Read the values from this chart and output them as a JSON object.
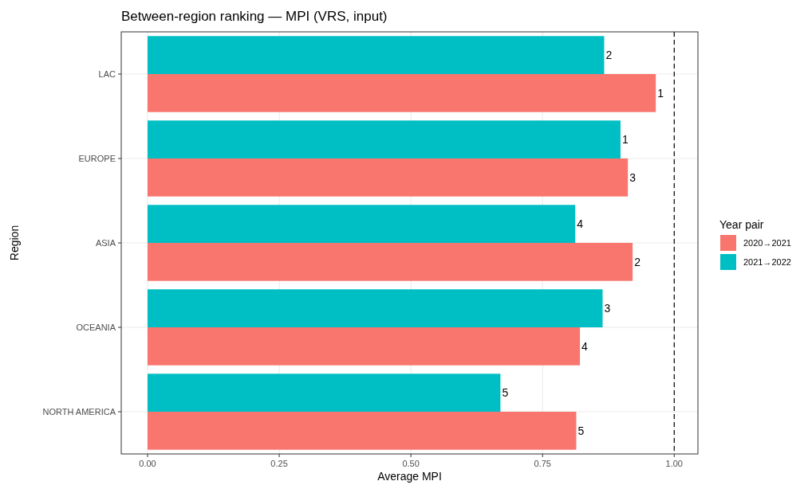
{
  "chart_data": {
    "type": "bar",
    "orientation": "horizontal",
    "title": "Between-region ranking — MPI (VRS, input)",
    "xlabel": "Average MPI",
    "ylabel": "Region",
    "legend_title": "Year pair",
    "legend": "right",
    "grid": true,
    "categories": [
      "LAC",
      "EUROPE",
      "ASIA",
      "OCEANIA",
      "NORTH AMERICA"
    ],
    "series": [
      {
        "name": "2020→2021",
        "color": "#f8766d",
        "values": [
          0.965,
          0.912,
          0.921,
          0.821,
          0.814
        ]
      },
      {
        "name": "2021→2022",
        "color": "#00bfc4",
        "values": [
          0.867,
          0.898,
          0.812,
          0.864,
          0.67
        ]
      }
    ],
    "annotations": [
      {
        "text": "1",
        "x": 0.965,
        "y": "LAC"
      },
      {
        "text": "3",
        "x": 0.912,
        "y": "EUROPE"
      },
      {
        "text": "2",
        "x": 0.921,
        "y": "ASIA"
      },
      {
        "text": "4",
        "x": 0.821,
        "y": "OCEANIA"
      },
      {
        "text": "5",
        "x": 0.814,
        "y": "NORTH AMERICA"
      },
      {
        "text": "2",
        "x": 0.867,
        "y": "LAC"
      },
      {
        "text": "1",
        "x": 0.898,
        "y": "EUROPE"
      },
      {
        "text": "4",
        "x": 0.812,
        "y": "ASIA"
      },
      {
        "text": "3",
        "x": 0.864,
        "y": "OCEANIA"
      },
      {
        "text": "5",
        "x": 0.67,
        "y": "NORTH AMERICA"
      }
    ],
    "xlim": [
      -0.05,
      1.045
    ],
    "xticks": [
      {
        "value": 0,
        "label": "0.00"
      },
      {
        "value": 0.25,
        "label": "0.25"
      },
      {
        "value": 0.5,
        "label": "0.50"
      },
      {
        "value": 0.75,
        "label": "0.75"
      },
      {
        "value": 1,
        "label": "1.00"
      }
    ],
    "ref_lines": [
      {
        "axis": "x",
        "value": 1,
        "color": "#000000",
        "line_style": "dashed"
      }
    ]
  }
}
